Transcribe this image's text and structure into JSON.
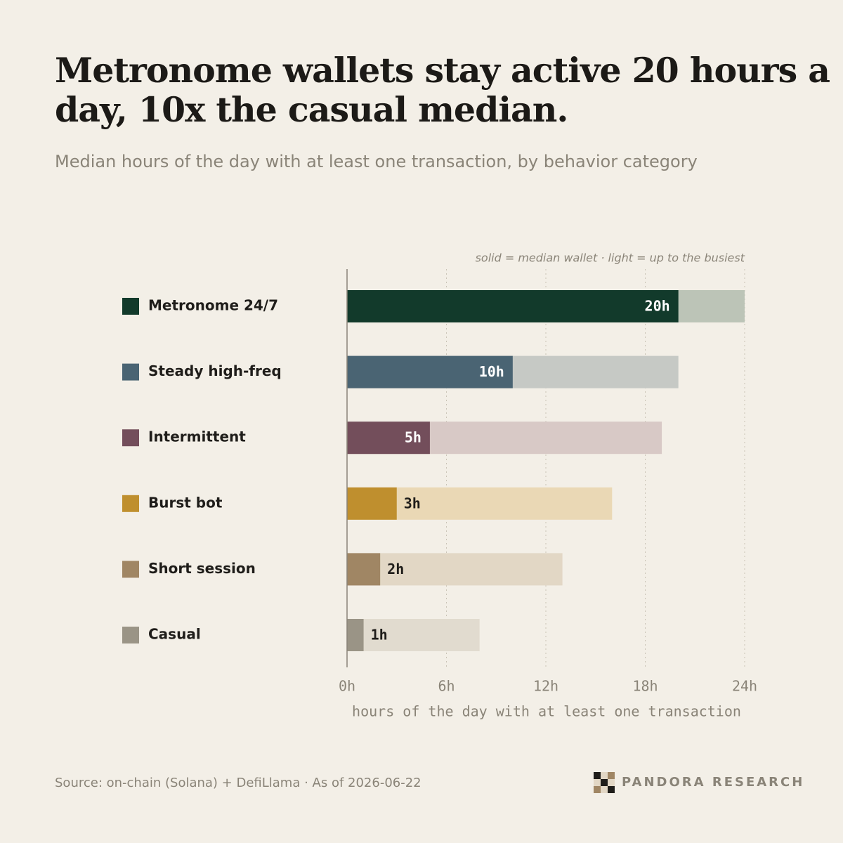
{
  "chart_data": {
    "type": "bar",
    "orientation": "horizontal",
    "title": "Metronome wallets stay active 20 hours a day, 10x the casual median.",
    "subtitle": "Median hours of the day with at least one transaction, by behavior category",
    "note": "solid = median wallet · light = up to the busiest",
    "categories": [
      "Metronome 24/7",
      "Steady high-freq",
      "Intermittent",
      "Burst bot",
      "Short session",
      "Casual"
    ],
    "series": [
      {
        "values": [
          20,
          10,
          5,
          3,
          2,
          1
        ],
        "value_labels": [
          "20h",
          "10h",
          "5h",
          "3h",
          "2h",
          "1h"
        ],
        "colors": [
          "#123a2b",
          "#4a6473",
          "#734e5b",
          "#bf8f2e",
          "#a08664",
          "#9a9486"
        ]
      },
      {
        "values": [
          24,
          20,
          19,
          16,
          13,
          8
        ],
        "colors": [
          "#bcc4b7",
          "#c6c9c5",
          "#d8c9c6",
          "#ead8b5",
          "#e2d7c5",
          "#e1dbcf"
        ]
      }
    ],
    "xlim": [
      0,
      24
    ],
    "xticks": [
      {
        "value": 0,
        "label": "0h"
      },
      {
        "value": 6,
        "label": "6h"
      },
      {
        "value": 12,
        "label": "12h"
      },
      {
        "value": 18,
        "label": "18h"
      },
      {
        "value": 24,
        "label": "24h"
      }
    ],
    "xlabel": "hours of the day with at least one transaction",
    "grid": true,
    "source": "Source: on-chain (Solana) + DefiLlama · As of 2026-06-22",
    "brand": "PANDORA RESEARCH"
  }
}
